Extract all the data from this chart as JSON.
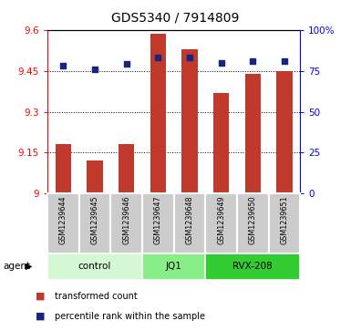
{
  "title": "GDS5340 / 7914809",
  "samples": [
    "GSM1239644",
    "GSM1239645",
    "GSM1239646",
    "GSM1239647",
    "GSM1239648",
    "GSM1239649",
    "GSM1239650",
    "GSM1239651"
  ],
  "bar_values": [
    9.18,
    9.12,
    9.18,
    9.585,
    9.53,
    9.37,
    9.44,
    9.45
  ],
  "percentile_values": [
    78,
    76,
    79,
    83,
    83,
    80,
    81,
    81
  ],
  "bar_color": "#c0392b",
  "dot_color": "#1a237e",
  "ylim_left": [
    9.0,
    9.6
  ],
  "ylim_right": [
    0,
    100
  ],
  "yticks_left": [
    9.0,
    9.15,
    9.3,
    9.45,
    9.6
  ],
  "ytick_labels_left": [
    "9",
    "9.15",
    "9.3",
    "9.45",
    "9.6"
  ],
  "yticks_right": [
    0,
    25,
    50,
    75,
    100
  ],
  "ytick_labels_right": [
    "0",
    "25",
    "50",
    "75",
    "100%"
  ],
  "groups": [
    {
      "label": "control",
      "start": 0,
      "end": 2,
      "color": "#d4f7d4"
    },
    {
      "label": "JQ1",
      "start": 3,
      "end": 4,
      "color": "#88ee88"
    },
    {
      "label": "RVX-208",
      "start": 5,
      "end": 7,
      "color": "#33cc33"
    }
  ],
  "agent_label": "agent",
  "legend_bar_label": "transformed count",
  "legend_dot_label": "percentile rank within the sample",
  "bar_width": 0.5,
  "sample_cell_color": "#cccccc",
  "cell_border_color": "#ffffff"
}
